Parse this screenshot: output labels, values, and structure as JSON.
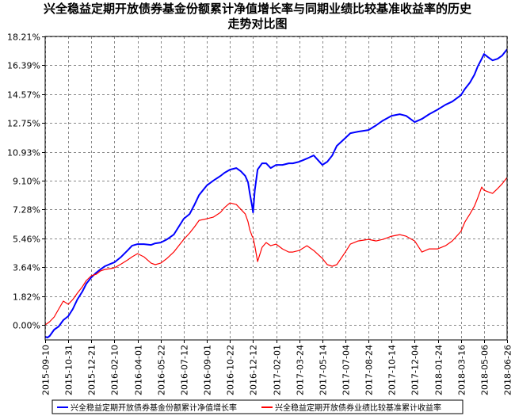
{
  "chart_data": {
    "type": "line",
    "title_lines": [
      "兴全稳益定期开放债券基金份额累计净值增长率与同期业绩比较基准收益率的历史",
      "走势对比图"
    ],
    "xlabel": "",
    "ylabel": "",
    "grid": true,
    "legend_position": "bottom",
    "x_ticks": [
      "2015-09-10",
      "2015-10-31",
      "2015-12-21",
      "2016-02-10",
      "2016-04-01",
      "2016-05-22",
      "2016-07-12",
      "2016-09-01",
      "2016-10-22",
      "2016-12-12",
      "2017-02-01",
      "2017-03-24",
      "2017-05-14",
      "2017-07-04",
      "2017-08-24",
      "2017-10-14",
      "2017-12-04",
      "2018-01-24",
      "2018-03-16",
      "2018-05-06",
      "2018-06-26"
    ],
    "y_ticks": [
      "18.21%",
      "16.39%",
      "14.57%",
      "12.75%",
      "10.93%",
      "9.10%",
      "7.28%",
      "5.46%",
      "3.64%",
      "1.82%",
      "0.00%"
    ],
    "y_tick_values": [
      18.21,
      16.39,
      14.57,
      12.75,
      10.93,
      9.1,
      7.28,
      5.46,
      3.64,
      1.82,
      0.0
    ],
    "ylim": [
      -0.95,
      18.21
    ],
    "xlim": [
      "2015-09-10",
      "2018-06-26"
    ],
    "series": [
      {
        "name": "兴全稳益定期开放债券基金份额累计净值增长率",
        "color": "#0000ff",
        "x": [
          "2015-09-10",
          "2015-09-15",
          "2015-09-20",
          "2015-09-30",
          "2015-10-10",
          "2015-10-20",
          "2015-10-31",
          "2015-11-10",
          "2015-11-20",
          "2015-12-01",
          "2015-12-10",
          "2015-12-21",
          "2016-01-01",
          "2016-01-10",
          "2016-01-20",
          "2016-02-01",
          "2016-02-10",
          "2016-02-25",
          "2016-03-10",
          "2016-03-20",
          "2016-04-01",
          "2016-04-15",
          "2016-05-01",
          "2016-05-10",
          "2016-05-22",
          "2016-06-05",
          "2016-06-20",
          "2016-07-01",
          "2016-07-12",
          "2016-07-25",
          "2016-08-05",
          "2016-08-15",
          "2016-09-01",
          "2016-09-15",
          "2016-10-01",
          "2016-10-10",
          "2016-10-22",
          "2016-11-05",
          "2016-11-15",
          "2016-11-25",
          "2016-12-01",
          "2016-12-05",
          "2016-12-10",
          "2016-12-12",
          "2016-12-16",
          "2016-12-22",
          "2017-01-01",
          "2017-01-10",
          "2017-01-20",
          "2017-02-01",
          "2017-02-15",
          "2017-03-01",
          "2017-03-10",
          "2017-03-24",
          "2017-04-10",
          "2017-04-25",
          "2017-05-14",
          "2017-05-25",
          "2017-06-05",
          "2017-06-15",
          "2017-07-04",
          "2017-07-15",
          "2017-08-01",
          "2017-08-24",
          "2017-09-10",
          "2017-09-25",
          "2017-10-14",
          "2017-11-01",
          "2017-11-15",
          "2017-12-04",
          "2017-12-20",
          "2018-01-05",
          "2018-01-24",
          "2018-02-10",
          "2018-02-25",
          "2018-03-16",
          "2018-03-25",
          "2018-04-05",
          "2018-04-15",
          "2018-04-22",
          "2018-05-01",
          "2018-05-06",
          "2018-05-15",
          "2018-05-25",
          "2018-06-05",
          "2018-06-15",
          "2018-06-26"
        ],
        "values": [
          -0.75,
          -0.8,
          -0.7,
          -0.3,
          -0.1,
          0.3,
          0.55,
          1.0,
          1.6,
          2.1,
          2.6,
          3.0,
          3.3,
          3.5,
          3.7,
          3.85,
          3.95,
          4.3,
          4.7,
          5.0,
          5.1,
          5.1,
          5.05,
          5.15,
          5.2,
          5.4,
          5.7,
          6.2,
          6.7,
          7.0,
          7.6,
          8.2,
          8.8,
          9.1,
          9.4,
          9.6,
          9.8,
          9.9,
          9.7,
          9.4,
          9.0,
          8.3,
          7.5,
          7.1,
          8.5,
          9.8,
          10.2,
          10.2,
          9.9,
          10.1,
          10.1,
          10.2,
          10.2,
          10.3,
          10.5,
          10.7,
          10.1,
          10.3,
          10.7,
          11.3,
          11.8,
          12.1,
          12.2,
          12.3,
          12.6,
          12.9,
          13.2,
          13.3,
          13.2,
          12.8,
          13.0,
          13.3,
          13.6,
          13.9,
          14.1,
          14.5,
          14.9,
          15.3,
          15.8,
          16.3,
          16.8,
          17.1,
          16.9,
          16.7,
          16.8,
          17.0,
          17.4
        ]
      },
      {
        "name": "兴全稳益定期开放债券业绩比较基准累计收益率",
        "color": "#ff0000",
        "x": [
          "2015-09-10",
          "2015-09-15",
          "2015-09-20",
          "2015-09-30",
          "2015-10-10",
          "2015-10-20",
          "2015-10-31",
          "2015-11-10",
          "2015-11-20",
          "2015-12-01",
          "2015-12-10",
          "2015-12-21",
          "2016-01-01",
          "2016-01-10",
          "2016-01-20",
          "2016-02-01",
          "2016-02-10",
          "2016-02-25",
          "2016-03-10",
          "2016-03-20",
          "2016-04-01",
          "2016-04-15",
          "2016-05-01",
          "2016-05-10",
          "2016-05-22",
          "2016-06-05",
          "2016-06-20",
          "2016-07-01",
          "2016-07-12",
          "2016-07-25",
          "2016-08-05",
          "2016-08-15",
          "2016-09-01",
          "2016-09-15",
          "2016-10-01",
          "2016-10-10",
          "2016-10-22",
          "2016-11-05",
          "2016-11-15",
          "2016-11-25",
          "2016-12-01",
          "2016-12-05",
          "2016-12-10",
          "2016-12-12",
          "2016-12-16",
          "2016-12-22",
          "2017-01-01",
          "2017-01-10",
          "2017-01-20",
          "2017-02-01",
          "2017-02-15",
          "2017-03-01",
          "2017-03-10",
          "2017-03-24",
          "2017-04-10",
          "2017-04-25",
          "2017-05-14",
          "2017-05-25",
          "2017-06-05",
          "2017-06-15",
          "2017-07-04",
          "2017-07-15",
          "2017-08-01",
          "2017-08-24",
          "2017-09-10",
          "2017-09-25",
          "2017-10-14",
          "2017-11-01",
          "2017-11-15",
          "2017-12-04",
          "2017-12-20",
          "2018-01-05",
          "2018-01-24",
          "2018-02-10",
          "2018-02-25",
          "2018-03-16",
          "2018-03-25",
          "2018-04-05",
          "2018-04-15",
          "2018-04-22",
          "2018-05-01",
          "2018-05-06",
          "2018-05-15",
          "2018-05-25",
          "2018-06-05",
          "2018-06-15",
          "2018-06-26"
        ],
        "values": [
          0.0,
          0.1,
          0.2,
          0.5,
          1.0,
          1.5,
          1.3,
          1.6,
          2.0,
          2.4,
          2.8,
          3.1,
          3.2,
          3.4,
          3.5,
          3.55,
          3.6,
          3.85,
          4.1,
          4.3,
          4.5,
          4.3,
          3.9,
          3.8,
          3.9,
          4.2,
          4.6,
          5.0,
          5.4,
          5.8,
          6.2,
          6.6,
          6.7,
          6.8,
          7.1,
          7.4,
          7.7,
          7.6,
          7.3,
          7.0,
          6.5,
          6.0,
          5.6,
          5.5,
          5.0,
          4.0,
          4.9,
          5.2,
          5.0,
          5.1,
          4.8,
          4.6,
          4.6,
          4.7,
          5.0,
          4.7,
          4.2,
          3.8,
          3.7,
          3.8,
          4.6,
          5.1,
          5.3,
          5.4,
          5.3,
          5.4,
          5.6,
          5.7,
          5.6,
          5.3,
          4.6,
          4.8,
          4.8,
          5.0,
          5.3,
          5.9,
          6.5,
          7.0,
          7.5,
          8.0,
          8.7,
          8.5,
          8.4,
          8.3,
          8.6,
          8.9,
          9.3
        ]
      }
    ]
  }
}
